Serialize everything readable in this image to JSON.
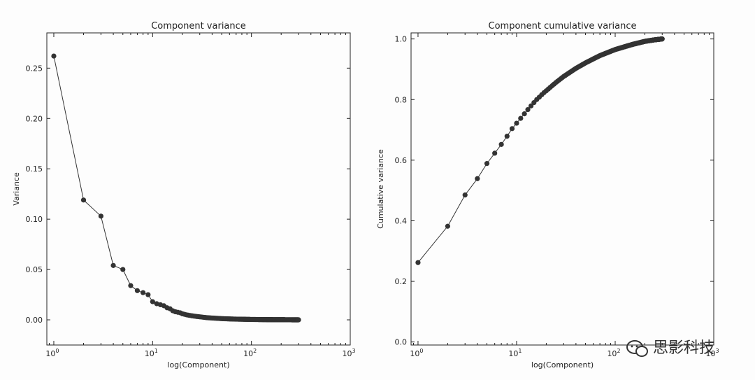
{
  "watermark": {
    "text": "思影科技",
    "icon": "wechat-icon"
  },
  "chart_data": [
    {
      "type": "line",
      "title": "Component variance",
      "xlabel": "log(Component)",
      "ylabel": "Variance",
      "xscale": "log",
      "xlim": [
        0.85,
        1000
      ],
      "ylim": [
        -0.025,
        0.285
      ],
      "xticks": [
        {
          "value": 1,
          "base": "10",
          "exp": "0"
        },
        {
          "value": 10,
          "base": "10",
          "exp": "1"
        },
        {
          "value": 100,
          "base": "10",
          "exp": "2"
        },
        {
          "value": 1000,
          "base": "10",
          "exp": "3"
        }
      ],
      "yticks": [
        "0.00",
        "0.05",
        "0.10",
        "0.15",
        "0.20",
        "0.25"
      ],
      "grid": false,
      "legend": "none",
      "marker": "circle",
      "color": "#333333",
      "n_components": 300,
      "series": [
        {
          "x": [
            1,
            2,
            3,
            4,
            5,
            6,
            7,
            8,
            9,
            10,
            11,
            12,
            13,
            14,
            15,
            16,
            17,
            18,
            19,
            20,
            22,
            25,
            28,
            30,
            35,
            40,
            45,
            50,
            60,
            70,
            80,
            100,
            120,
            150,
            200,
            250,
            300
          ],
          "values": [
            0.262,
            0.119,
            0.103,
            0.054,
            0.05,
            0.034,
            0.029,
            0.027,
            0.025,
            0.018,
            0.016,
            0.015,
            0.014,
            0.012,
            0.011,
            0.009,
            0.008,
            0.0075,
            0.007,
            0.006,
            0.005,
            0.004,
            0.0033,
            0.003,
            0.0022,
            0.0018,
            0.0015,
            0.0012,
            0.0009,
            0.0007,
            0.0006,
            0.0004,
            0.0003,
            0.0002,
            0.0001,
            5e-05,
            2e-05
          ]
        }
      ]
    },
    {
      "type": "line",
      "title": "Component cumulative variance",
      "xlabel": "log(Component)",
      "ylabel": "Cumulative variance",
      "xscale": "log",
      "xlim": [
        0.85,
        1000
      ],
      "ylim": [
        -0.01,
        1.02
      ],
      "xticks": [
        {
          "value": 1,
          "base": "10",
          "exp": "0"
        },
        {
          "value": 10,
          "base": "10",
          "exp": "1"
        },
        {
          "value": 100,
          "base": "10",
          "exp": "2"
        },
        {
          "value": 1000,
          "base": "10",
          "exp": "3"
        }
      ],
      "yticks": [
        "0.0",
        "0.2",
        "0.4",
        "0.6",
        "0.8",
        "1.0"
      ],
      "grid": false,
      "legend": "none",
      "marker": "circle",
      "color": "#333333",
      "n_components": 300,
      "series": [
        {
          "x": [
            1,
            2,
            3,
            4,
            5,
            6,
            7,
            8,
            9,
            10,
            11,
            12,
            13,
            14,
            15,
            16,
            17,
            18,
            19,
            20,
            25,
            30,
            40,
            50,
            70,
            100,
            150,
            200,
            250,
            300
          ],
          "values": [
            0.262,
            0.382,
            0.485,
            0.539,
            0.589,
            0.623,
            0.652,
            0.679,
            0.704,
            0.722,
            0.738,
            0.753,
            0.767,
            0.779,
            0.79,
            0.8,
            0.808,
            0.816,
            0.823,
            0.829,
            0.856,
            0.876,
            0.903,
            0.921,
            0.945,
            0.965,
            0.982,
            0.992,
            0.997,
            1.0
          ]
        }
      ]
    }
  ]
}
